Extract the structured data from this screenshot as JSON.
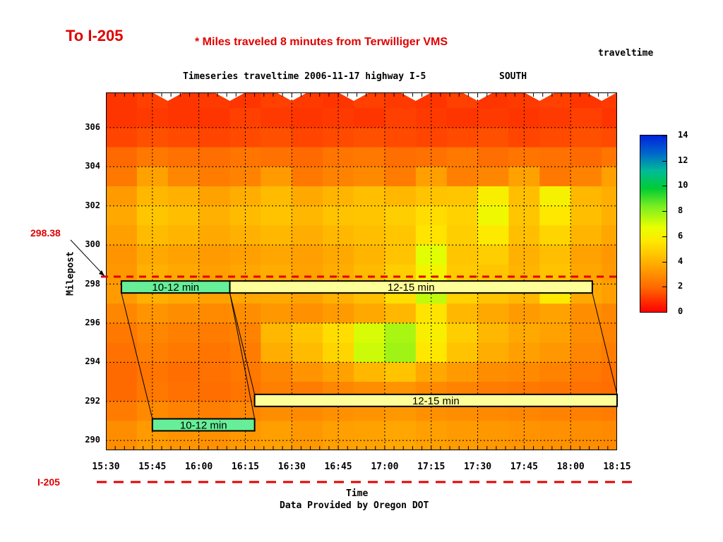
{
  "headline": "To I-205",
  "subtitle": "* Miles traveled 8 minutes from Terwilliger VMS",
  "legend_title": "traveltime",
  "marker_label": "298.38",
  "bottom_label": "I-205",
  "colors": {
    "annotation_red": "#e00000",
    "box_green": "#66ee99",
    "box_yellow": "#ffff99"
  },
  "chart_data": {
    "type": "heatmap",
    "title": "Timeseries traveltime 2006-11-17 highway I-5",
    "direction": "SOUTH",
    "xlabel": "Time",
    "ylabel": "Milepost",
    "footer": "Data Provided by Oregon DOT",
    "x_ticks": [
      "15:30",
      "15:45",
      "16:00",
      "16:15",
      "16:30",
      "16:45",
      "17:00",
      "17:15",
      "17:30",
      "17:45",
      "18:00",
      "18:15"
    ],
    "y_ticks": [
      "290",
      "292",
      "294",
      "296",
      "298",
      "300",
      "302",
      "304",
      "306"
    ],
    "xlim": [
      "15:30",
      "18:15"
    ],
    "ylim": [
      289.5,
      307.8
    ],
    "colorbar": {
      "min": 0,
      "max": 14,
      "ticks": [
        "0",
        "2",
        "4",
        "6",
        "8",
        "10",
        "12",
        "14"
      ]
    },
    "grid": true,
    "cells": {
      "x_start": [
        "15:30",
        "15:40",
        "15:50",
        "16:00",
        "16:10",
        "16:20",
        "16:30",
        "16:40",
        "16:50",
        "17:00",
        "17:10",
        "17:20",
        "17:30",
        "17:40",
        "17:50",
        "18:00",
        "18:10"
      ],
      "y_start": [
        307,
        306,
        305,
        304,
        303,
        302,
        301,
        300,
        299,
        298,
        297,
        296,
        295,
        294,
        293,
        292,
        291,
        290
      ],
      "values": [
        [
          1.0,
          1.2,
          1.0,
          1.1,
          1.0,
          1.2,
          1.1,
          1.0,
          1.2,
          1.1,
          1.0,
          1.2,
          1.0,
          1.1,
          1.2,
          1.0,
          1.1
        ],
        [
          1.0,
          1.1,
          1.0,
          1.0,
          1.2,
          1.1,
          1.0,
          1.1,
          1.0,
          1.2,
          1.1,
          1.0,
          1.1,
          1.0,
          1.1,
          1.2,
          1.0
        ],
        [
          1.3,
          1.5,
          1.4,
          1.3,
          1.4,
          1.5,
          1.3,
          1.4,
          1.5,
          1.4,
          1.3,
          1.4,
          1.5,
          1.3,
          1.4,
          1.5,
          1.4
        ],
        [
          2.0,
          2.4,
          2.2,
          2.1,
          2.3,
          2.2,
          2.0,
          2.3,
          2.4,
          2.1,
          2.2,
          2.4,
          2.1,
          2.3,
          2.2,
          2.0,
          2.3
        ],
        [
          2.4,
          3.6,
          2.8,
          2.5,
          2.7,
          3.4,
          2.4,
          2.7,
          2.9,
          2.5,
          3.5,
          2.6,
          2.8,
          3.6,
          2.4,
          2.7,
          3.5
        ],
        [
          3.4,
          4.2,
          4.0,
          3.6,
          3.9,
          4.3,
          3.8,
          4.1,
          4.4,
          4.2,
          4.5,
          4.6,
          5.8,
          4.4,
          5.9,
          4.2,
          3.9
        ],
        [
          3.8,
          4.6,
          4.4,
          4.0,
          4.3,
          4.5,
          4.2,
          4.5,
          4.6,
          4.8,
          5.2,
          4.9,
          6.2,
          4.6,
          5.5,
          4.4,
          4.0
        ],
        [
          3.5,
          4.3,
          4.1,
          3.8,
          4.0,
          4.2,
          3.9,
          4.2,
          4.4,
          4.6,
          5.4,
          4.8,
          5.6,
          4.4,
          5.0,
          4.1,
          3.7
        ],
        [
          3.2,
          3.8,
          3.6,
          3.4,
          3.5,
          3.7,
          3.5,
          3.8,
          4.1,
          4.5,
          6.6,
          4.6,
          4.8,
          4.0,
          4.4,
          3.6,
          3.3
        ],
        [
          3.3,
          4.0,
          3.8,
          3.5,
          3.7,
          3.9,
          3.6,
          3.9,
          4.3,
          4.8,
          6.0,
          4.7,
          4.6,
          4.1,
          4.5,
          3.7,
          3.4
        ],
        [
          3.4,
          4.0,
          3.8,
          3.6,
          3.7,
          3.8,
          3.6,
          4.0,
          4.4,
          5.2,
          7.2,
          4.9,
          4.5,
          4.2,
          5.6,
          3.8,
          3.5
        ],
        [
          2.8,
          3.2,
          3.0,
          2.9,
          3.0,
          3.3,
          3.1,
          3.4,
          3.8,
          4.2,
          5.4,
          4.2,
          3.8,
          3.4,
          3.6,
          3.0,
          2.8
        ],
        [
          2.4,
          2.8,
          2.6,
          2.5,
          2.7,
          4.2,
          4.6,
          5.2,
          6.8,
          7.6,
          5.8,
          4.8,
          4.2,
          3.8,
          3.6,
          3.0,
          2.7
        ],
        [
          2.2,
          2.6,
          2.4,
          2.3,
          2.5,
          3.9,
          4.3,
          5.0,
          7.0,
          7.8,
          5.5,
          4.5,
          3.9,
          3.5,
          3.3,
          2.8,
          2.5
        ],
        [
          2.0,
          2.3,
          2.1,
          2.2,
          2.4,
          2.8,
          3.2,
          3.6,
          4.2,
          4.5,
          3.8,
          3.4,
          3.0,
          2.9,
          2.7,
          2.4,
          2.2
        ],
        [
          2.0,
          2.4,
          2.2,
          2.1,
          2.3,
          2.6,
          2.5,
          2.8,
          3.0,
          3.2,
          2.9,
          2.7,
          2.5,
          2.4,
          2.3,
          2.2,
          2.1
        ],
        [
          2.5,
          2.9,
          2.7,
          2.6,
          2.8,
          3.0,
          2.9,
          3.1,
          3.2,
          3.3,
          3.1,
          3.0,
          2.9,
          2.8,
          2.7,
          2.6,
          2.5
        ],
        [
          3.0,
          3.4,
          3.2,
          3.1,
          3.3,
          3.5,
          3.3,
          3.5,
          3.6,
          3.7,
          3.5,
          3.4,
          3.3,
          3.2,
          3.1,
          3.0,
          2.9
        ]
      ]
    },
    "annotations": [
      {
        "label": "10-12 min",
        "time_from": "15:35",
        "time_to": "16:10",
        "milepost": 297.85,
        "fill": "#66ee99"
      },
      {
        "label": "12-15 min",
        "time_from": "16:10",
        "time_to": "18:07",
        "milepost": 297.85,
        "fill": "#ffff99"
      },
      {
        "label": "10-12 min",
        "time_from": "15:45",
        "time_to": "16:18",
        "milepost": 290.8,
        "fill": "#66ee99"
      },
      {
        "label": "12-15 min",
        "time_from": "16:18",
        "time_to": "18:15",
        "milepost": 292.05,
        "fill": "#ffff99"
      }
    ],
    "reference_milepost": 298.38
  }
}
